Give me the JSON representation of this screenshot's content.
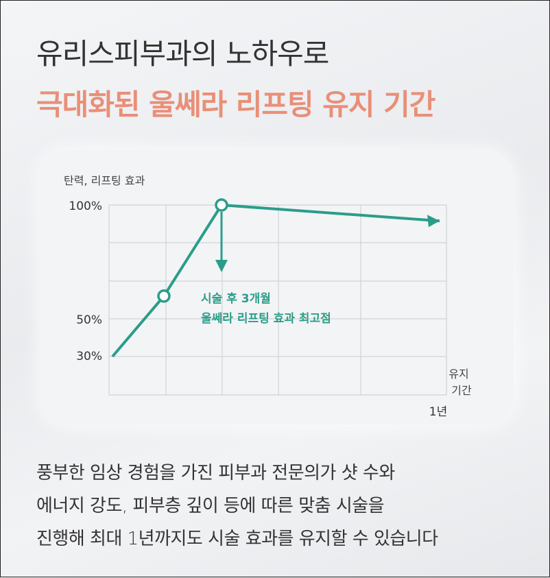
{
  "header": {
    "line1": "유리스피부과의 노하우로",
    "line2": "극대화된 울쎄라 리프팅 유지 기간"
  },
  "chart_data": {
    "type": "line",
    "ylabel": "탄력, 리프팅 효과",
    "xlabel": [
      "유지",
      "기간"
    ],
    "y_ticks": [
      "100%",
      "50%",
      "30%"
    ],
    "x_ticks": [
      "1년"
    ],
    "ylim": [
      30,
      100
    ],
    "grid": true,
    "series": [
      {
        "values": [
          30,
          60,
          100,
          93
        ]
      }
    ],
    "annotation": [
      "시술 후 3개월",
      "울쎄라 리프팅 효과 최고점"
    ],
    "colors": {
      "line": "#2a9d8a",
      "annotation": "#2a9d8a"
    }
  },
  "body": {
    "lines": [
      "풍부한 임상 경험을 가진 피부과 전문의가 샷 수와",
      "에너지 강도, 피부층 깊이 등에 따른 맞춤 시술을",
      "진행해 최대 1년까지도 시술 효과를 유지할 수 있습니다"
    ]
  }
}
